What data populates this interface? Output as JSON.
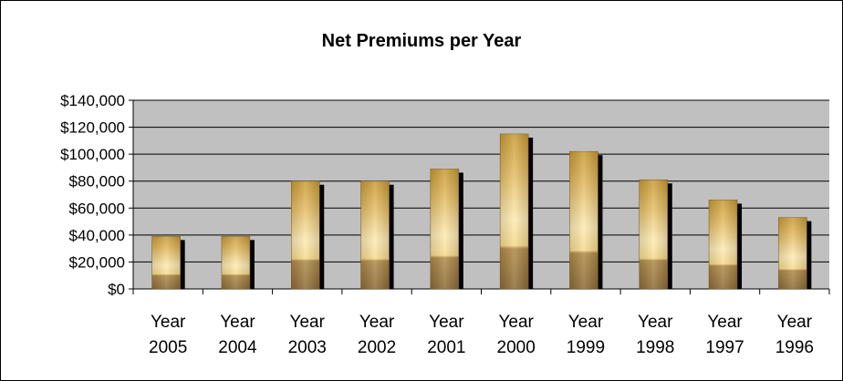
{
  "chart_data": {
    "type": "bar",
    "title": "Net Premiums per Year",
    "xlabel": "",
    "ylabel": "",
    "categories": [
      [
        "Year",
        "2005"
      ],
      [
        "Year",
        "2004"
      ],
      [
        "Year",
        "2003"
      ],
      [
        "Year",
        "2002"
      ],
      [
        "Year",
        "2001"
      ],
      [
        "Year",
        "2000"
      ],
      [
        "Year",
        "1999"
      ],
      [
        "Year",
        "1998"
      ],
      [
        "Year",
        "1997"
      ],
      [
        "Year",
        "1996"
      ]
    ],
    "values": [
      39000,
      39000,
      80000,
      80000,
      89000,
      115000,
      102000,
      81000,
      66000,
      53000
    ],
    "ylim": [
      0,
      140000
    ],
    "yticks": [
      "$0",
      "$20,000",
      "$40,000",
      "$60,000",
      "$80,000",
      "$100,000",
      "$120,000",
      "$140,000"
    ],
    "yticks_values": [
      0,
      20000,
      40000,
      60000,
      80000,
      100000,
      120000,
      140000
    ],
    "grid": true,
    "legend": "none",
    "colors": {
      "plot_background": "#c0c0c0",
      "bar_light": "#fdeab2",
      "bar_mid": "#e3bb63",
      "bar_dark": "#9c7431",
      "bar_shadow": "#000000",
      "gridline": "#000000"
    }
  }
}
